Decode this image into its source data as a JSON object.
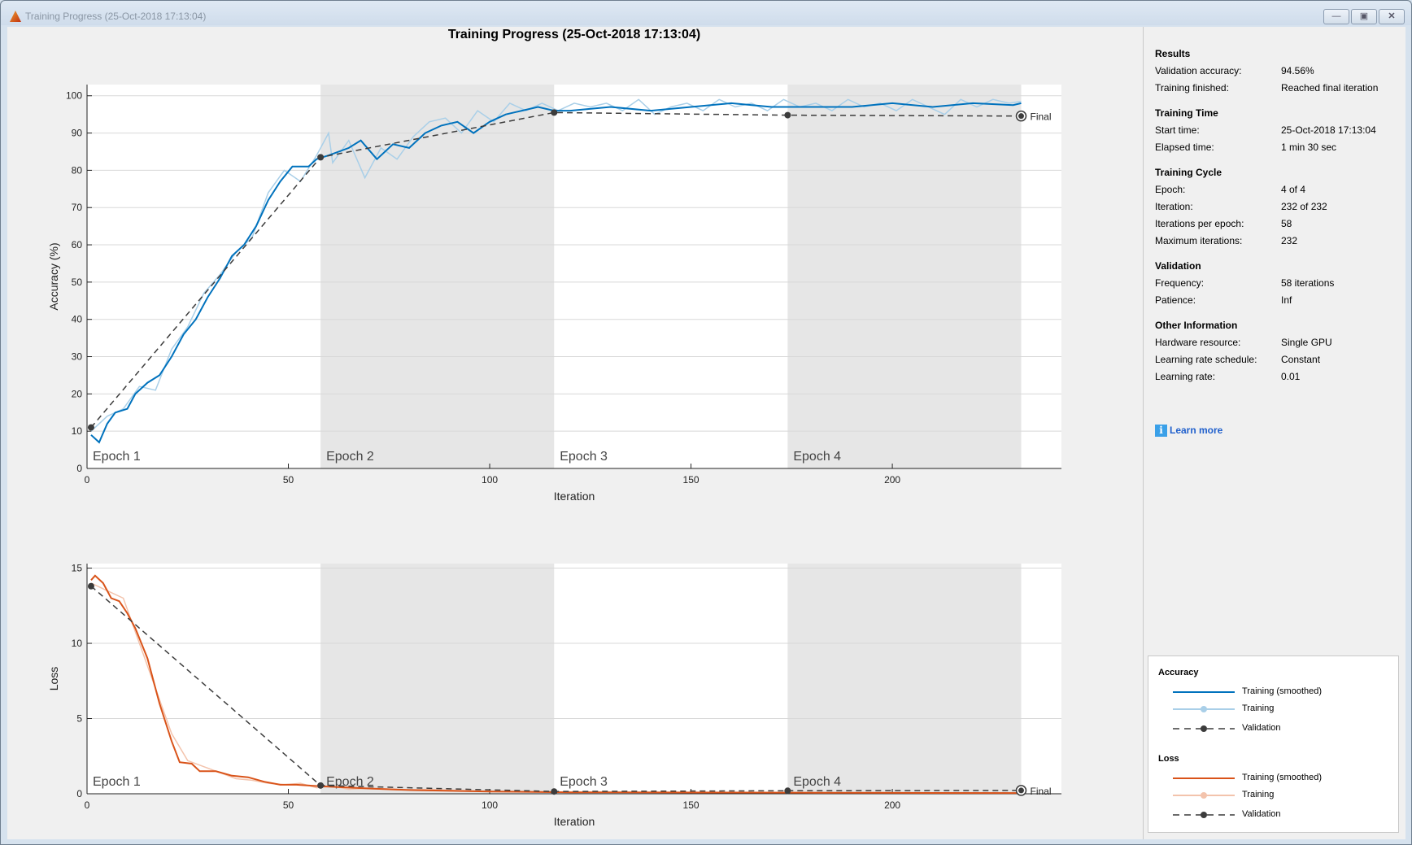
{
  "window": {
    "title": "Training Progress (25-Oct-2018 17:13:04)",
    "buttons": [
      "minimize",
      "maximize",
      "close"
    ]
  },
  "plot_title": "Training Progress (25-Oct-2018 17:13:04)",
  "colors": {
    "acc_smoothed": "#0072bd",
    "acc_raw": "#a9cfe8",
    "loss_smoothed": "#d95319",
    "loss_raw": "#f3c3ac",
    "validation": "#3c3c3c",
    "epoch_shade": "#e6e6e6"
  },
  "chart_data": [
    {
      "type": "line",
      "ylabel": "Accuracy (%)",
      "xlabel": "Iteration",
      "xlim": [
        0,
        242
      ],
      "ylim": [
        0,
        103
      ],
      "xticks": [
        0,
        50,
        100,
        150,
        200
      ],
      "yticks": [
        0,
        10,
        20,
        30,
        40,
        50,
        60,
        70,
        80,
        90,
        100
      ],
      "grid": true,
      "epochs": [
        {
          "label": "Epoch 1",
          "start": 0,
          "end": 58,
          "shaded": false
        },
        {
          "label": "Epoch 2",
          "start": 58,
          "end": 116,
          "shaded": true
        },
        {
          "label": "Epoch 3",
          "start": 116,
          "end": 174,
          "shaded": false
        },
        {
          "label": "Epoch 4",
          "start": 174,
          "end": 232,
          "shaded": true
        }
      ],
      "final_label": "Final",
      "series": [
        {
          "name": "Training",
          "style": "raw",
          "points": [
            [
              1,
              10
            ],
            [
              5,
              14
            ],
            [
              9,
              16
            ],
            [
              13,
              22
            ],
            [
              17,
              21
            ],
            [
              21,
              32
            ],
            [
              25,
              38
            ],
            [
              29,
              47
            ],
            [
              33,
              52
            ],
            [
              37,
              58
            ],
            [
              41,
              62
            ],
            [
              45,
              74
            ],
            [
              49,
              80
            ],
            [
              53,
              77
            ],
            [
              57,
              84
            ],
            [
              60,
              90
            ],
            [
              61,
              82
            ],
            [
              65,
              88
            ],
            [
              69,
              78
            ],
            [
              73,
              86
            ],
            [
              77,
              83
            ],
            [
              81,
              89
            ],
            [
              85,
              93
            ],
            [
              89,
              94
            ],
            [
              93,
              90
            ],
            [
              97,
              96
            ],
            [
              101,
              93
            ],
            [
              105,
              98
            ],
            [
              109,
              96
            ],
            [
              113,
              98
            ],
            [
              117,
              96
            ],
            [
              121,
              98
            ],
            [
              125,
              97
            ],
            [
              129,
              98
            ],
            [
              133,
              96
            ],
            [
              137,
              99
            ],
            [
              141,
              95
            ],
            [
              145,
              97
            ],
            [
              149,
              98
            ],
            [
              153,
              96
            ],
            [
              157,
              99
            ],
            [
              161,
              97
            ],
            [
              165,
              98
            ],
            [
              169,
              96
            ],
            [
              173,
              99
            ],
            [
              177,
              97
            ],
            [
              181,
              98
            ],
            [
              185,
              96
            ],
            [
              189,
              99
            ],
            [
              193,
              97
            ],
            [
              197,
              98
            ],
            [
              201,
              96
            ],
            [
              205,
              99
            ],
            [
              209,
              97
            ],
            [
              213,
              95
            ],
            [
              217,
              99
            ],
            [
              221,
              97
            ],
            [
              225,
              99
            ],
            [
              229,
              98
            ],
            [
              232,
              98.5
            ]
          ]
        },
        {
          "name": "Training (smoothed)",
          "style": "smoothed",
          "points": [
            [
              1,
              9
            ],
            [
              3,
              7
            ],
            [
              5,
              12
            ],
            [
              7,
              15
            ],
            [
              10,
              16
            ],
            [
              12,
              20
            ],
            [
              15,
              23
            ],
            [
              18,
              25
            ],
            [
              21,
              30
            ],
            [
              24,
              36
            ],
            [
              27,
              40
            ],
            [
              30,
              46
            ],
            [
              33,
              51
            ],
            [
              36,
              57
            ],
            [
              39,
              60
            ],
            [
              42,
              65
            ],
            [
              45,
              72
            ],
            [
              48,
              77
            ],
            [
              51,
              81
            ],
            [
              55,
              81
            ],
            [
              57,
              83
            ],
            [
              60,
              84
            ],
            [
              65,
              86
            ],
            [
              68,
              88
            ],
            [
              72,
              83
            ],
            [
              76,
              87
            ],
            [
              80,
              86
            ],
            [
              84,
              90
            ],
            [
              88,
              92
            ],
            [
              92,
              93
            ],
            [
              96,
              90
            ],
            [
              100,
              93
            ],
            [
              104,
              95
            ],
            [
              108,
              96
            ],
            [
              112,
              97
            ],
            [
              116,
              96
            ],
            [
              120,
              96
            ],
            [
              130,
              97
            ],
            [
              140,
              96
            ],
            [
              150,
              97
            ],
            [
              160,
              98
            ],
            [
              170,
              97
            ],
            [
              180,
              97
            ],
            [
              190,
              97
            ],
            [
              200,
              98
            ],
            [
              210,
              97
            ],
            [
              220,
              98
            ],
            [
              230,
              97.5
            ],
            [
              232,
              98
            ]
          ]
        },
        {
          "name": "Validation",
          "style": "validation",
          "points": [
            [
              1,
              11
            ],
            [
              58,
              83.5
            ],
            [
              116,
              95.5
            ],
            [
              174,
              94.8
            ],
            [
              232,
              94.56
            ]
          ]
        }
      ]
    },
    {
      "type": "line",
      "ylabel": "Loss",
      "xlabel": "Iteration",
      "xlim": [
        0,
        242
      ],
      "ylim": [
        0,
        15.3
      ],
      "xticks": [
        0,
        50,
        100,
        150,
        200
      ],
      "yticks": [
        0,
        5,
        10,
        15
      ],
      "grid": true,
      "epochs": [
        {
          "label": "Epoch 1",
          "start": 0,
          "end": 58,
          "shaded": false
        },
        {
          "label": "Epoch 2",
          "start": 58,
          "end": 116,
          "shaded": true
        },
        {
          "label": "Epoch 3",
          "start": 116,
          "end": 174,
          "shaded": false
        },
        {
          "label": "Epoch 4",
          "start": 174,
          "end": 232,
          "shaded": true
        }
      ],
      "final_label": "Final",
      "series": [
        {
          "name": "Training",
          "style": "raw",
          "points": [
            [
              1,
              14
            ],
            [
              5,
              13.5
            ],
            [
              9,
              13
            ],
            [
              13,
              10
            ],
            [
              17,
              7
            ],
            [
              21,
              4
            ],
            [
              25,
              2.2
            ],
            [
              29,
              1.8
            ],
            [
              33,
              1.4
            ],
            [
              37,
              1.0
            ],
            [
              41,
              0.9
            ],
            [
              45,
              0.7
            ],
            [
              49,
              0.6
            ],
            [
              53,
              0.7
            ],
            [
              57,
              0.4
            ],
            [
              61,
              0.5
            ],
            [
              65,
              0.3
            ],
            [
              69,
              0.35
            ],
            [
              77,
              0.25
            ],
            [
              85,
              0.3
            ],
            [
              93,
              0.2
            ],
            [
              101,
              0.15
            ],
            [
              117,
              0.12
            ],
            [
              133,
              0.1
            ],
            [
              149,
              0.08
            ],
            [
              165,
              0.1
            ],
            [
              181,
              0.06
            ],
            [
              197,
              0.08
            ],
            [
              213,
              0.05
            ],
            [
              232,
              0.05
            ]
          ]
        },
        {
          "name": "Training (smoothed)",
          "style": "smoothed",
          "points": [
            [
              1,
              14.2
            ],
            [
              2,
              14.5
            ],
            [
              4,
              14.0
            ],
            [
              6,
              13
            ],
            [
              8,
              12.8
            ],
            [
              10,
              12
            ],
            [
              12,
              11
            ],
            [
              15,
              9
            ],
            [
              18,
              6
            ],
            [
              21,
              3.5
            ],
            [
              23,
              2.1
            ],
            [
              26,
              2.0
            ],
            [
              28,
              1.5
            ],
            [
              32,
              1.5
            ],
            [
              36,
              1.2
            ],
            [
              40,
              1.1
            ],
            [
              44,
              0.8
            ],
            [
              48,
              0.6
            ],
            [
              52,
              0.6
            ],
            [
              58,
              0.5
            ],
            [
              70,
              0.35
            ],
            [
              80,
              0.25
            ],
            [
              100,
              0.15
            ],
            [
              120,
              0.1
            ],
            [
              160,
              0.08
            ],
            [
              200,
              0.06
            ],
            [
              232,
              0.05
            ]
          ]
        },
        {
          "name": "Validation",
          "style": "validation",
          "points": [
            [
              1,
              13.8
            ],
            [
              58,
              0.55
            ],
            [
              116,
              0.15
            ],
            [
              174,
              0.2
            ],
            [
              232,
              0.22
            ]
          ]
        }
      ]
    }
  ],
  "panel": {
    "sections": [
      {
        "title": "Results",
        "rows": [
          [
            "Validation accuracy:",
            "94.56%"
          ],
          [
            "Training finished:",
            "Reached final iteration"
          ]
        ]
      },
      {
        "title": "Training Time",
        "rows": [
          [
            "Start time:",
            "25-Oct-2018 17:13:04"
          ],
          [
            "Elapsed time:",
            "1 min 30 sec"
          ]
        ]
      },
      {
        "title": "Training Cycle",
        "rows": [
          [
            "Epoch:",
            "4 of 4"
          ],
          [
            "Iteration:",
            "232 of 232"
          ],
          [
            "Iterations per epoch:",
            "58"
          ],
          [
            "Maximum iterations:",
            "232"
          ]
        ]
      },
      {
        "title": "Validation",
        "rows": [
          [
            "Frequency:",
            "58 iterations"
          ],
          [
            "Patience:",
            "Inf"
          ]
        ]
      },
      {
        "title": "Other Information",
        "rows": [
          [
            "Hardware resource:",
            "Single GPU"
          ],
          [
            "Learning rate schedule:",
            "Constant"
          ],
          [
            "Learning rate:",
            "0.01"
          ]
        ]
      }
    ],
    "learn_more": "Learn more",
    "info_icon": "i"
  },
  "legend": {
    "groups": [
      {
        "title": "Accuracy",
        "items": [
          "Training (smoothed)",
          "Training",
          "Validation"
        ]
      },
      {
        "title": "Loss",
        "items": [
          "Training (smoothed)",
          "Training",
          "Validation"
        ]
      }
    ]
  }
}
